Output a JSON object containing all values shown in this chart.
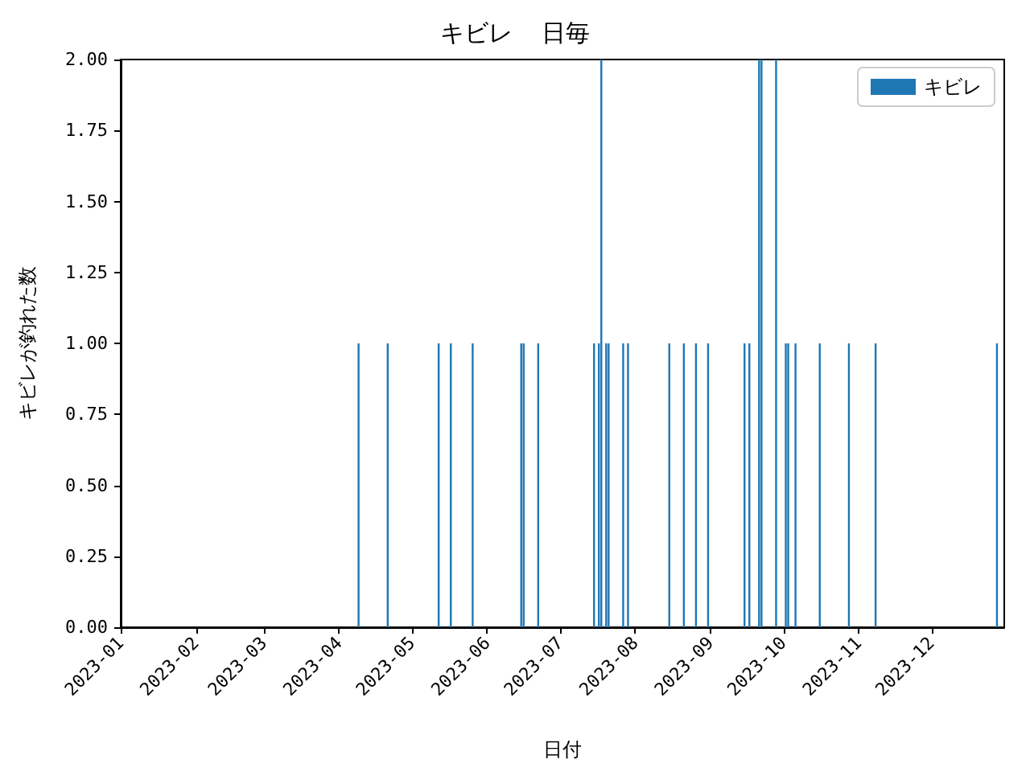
{
  "chart_data": {
    "type": "bar",
    "title": "キビレ  日毎",
    "xlabel": "日付",
    "ylabel": "キビレが釣れた数",
    "x": [
      "2023-04-09",
      "2023-04-21",
      "2023-05-12",
      "2023-05-17",
      "2023-05-26",
      "2023-06-15",
      "2023-06-16",
      "2023-06-22",
      "2023-07-15",
      "2023-07-17",
      "2023-07-18",
      "2023-07-20",
      "2023-07-21",
      "2023-07-27",
      "2023-07-29",
      "2023-08-15",
      "2023-08-21",
      "2023-08-26",
      "2023-08-31",
      "2023-09-15",
      "2023-09-17",
      "2023-09-21",
      "2023-09-22",
      "2023-09-28",
      "2023-10-02",
      "2023-10-03",
      "2023-10-06",
      "2023-10-16",
      "2023-10-28",
      "2023-11-08",
      "2023-12-28"
    ],
    "series": [
      {
        "name": "キビレ",
        "color": "#1f77b4",
        "values": [
          1,
          1,
          1,
          1,
          1,
          1,
          1,
          1,
          1,
          1,
          2,
          1,
          1,
          1,
          1,
          1,
          1,
          1,
          1,
          1,
          1,
          2,
          2,
          2,
          1,
          1,
          1,
          1,
          1,
          1,
          1
        ]
      }
    ],
    "xlim": [
      "2023-01-01",
      "2023-12-31"
    ],
    "xticks": [
      "2023-01",
      "2023-02",
      "2023-03",
      "2023-04",
      "2023-05",
      "2023-06",
      "2023-07",
      "2023-08",
      "2023-09",
      "2023-10",
      "2023-11",
      "2023-12"
    ],
    "ylim": [
      0,
      2
    ],
    "yticks": [
      {
        "value": 0,
        "label": "0.00"
      },
      {
        "value": 0.25,
        "label": "0.25"
      },
      {
        "value": 0.5,
        "label": "0.50"
      },
      {
        "value": 0.75,
        "label": "0.75"
      },
      {
        "value": 1,
        "label": "1.00"
      },
      {
        "value": 1.25,
        "label": "1.25"
      },
      {
        "value": 1.5,
        "label": "1.50"
      },
      {
        "value": 1.75,
        "label": "1.75"
      },
      {
        "value": 2,
        "label": "2.00"
      }
    ],
    "grid": false,
    "legend": "top right"
  }
}
